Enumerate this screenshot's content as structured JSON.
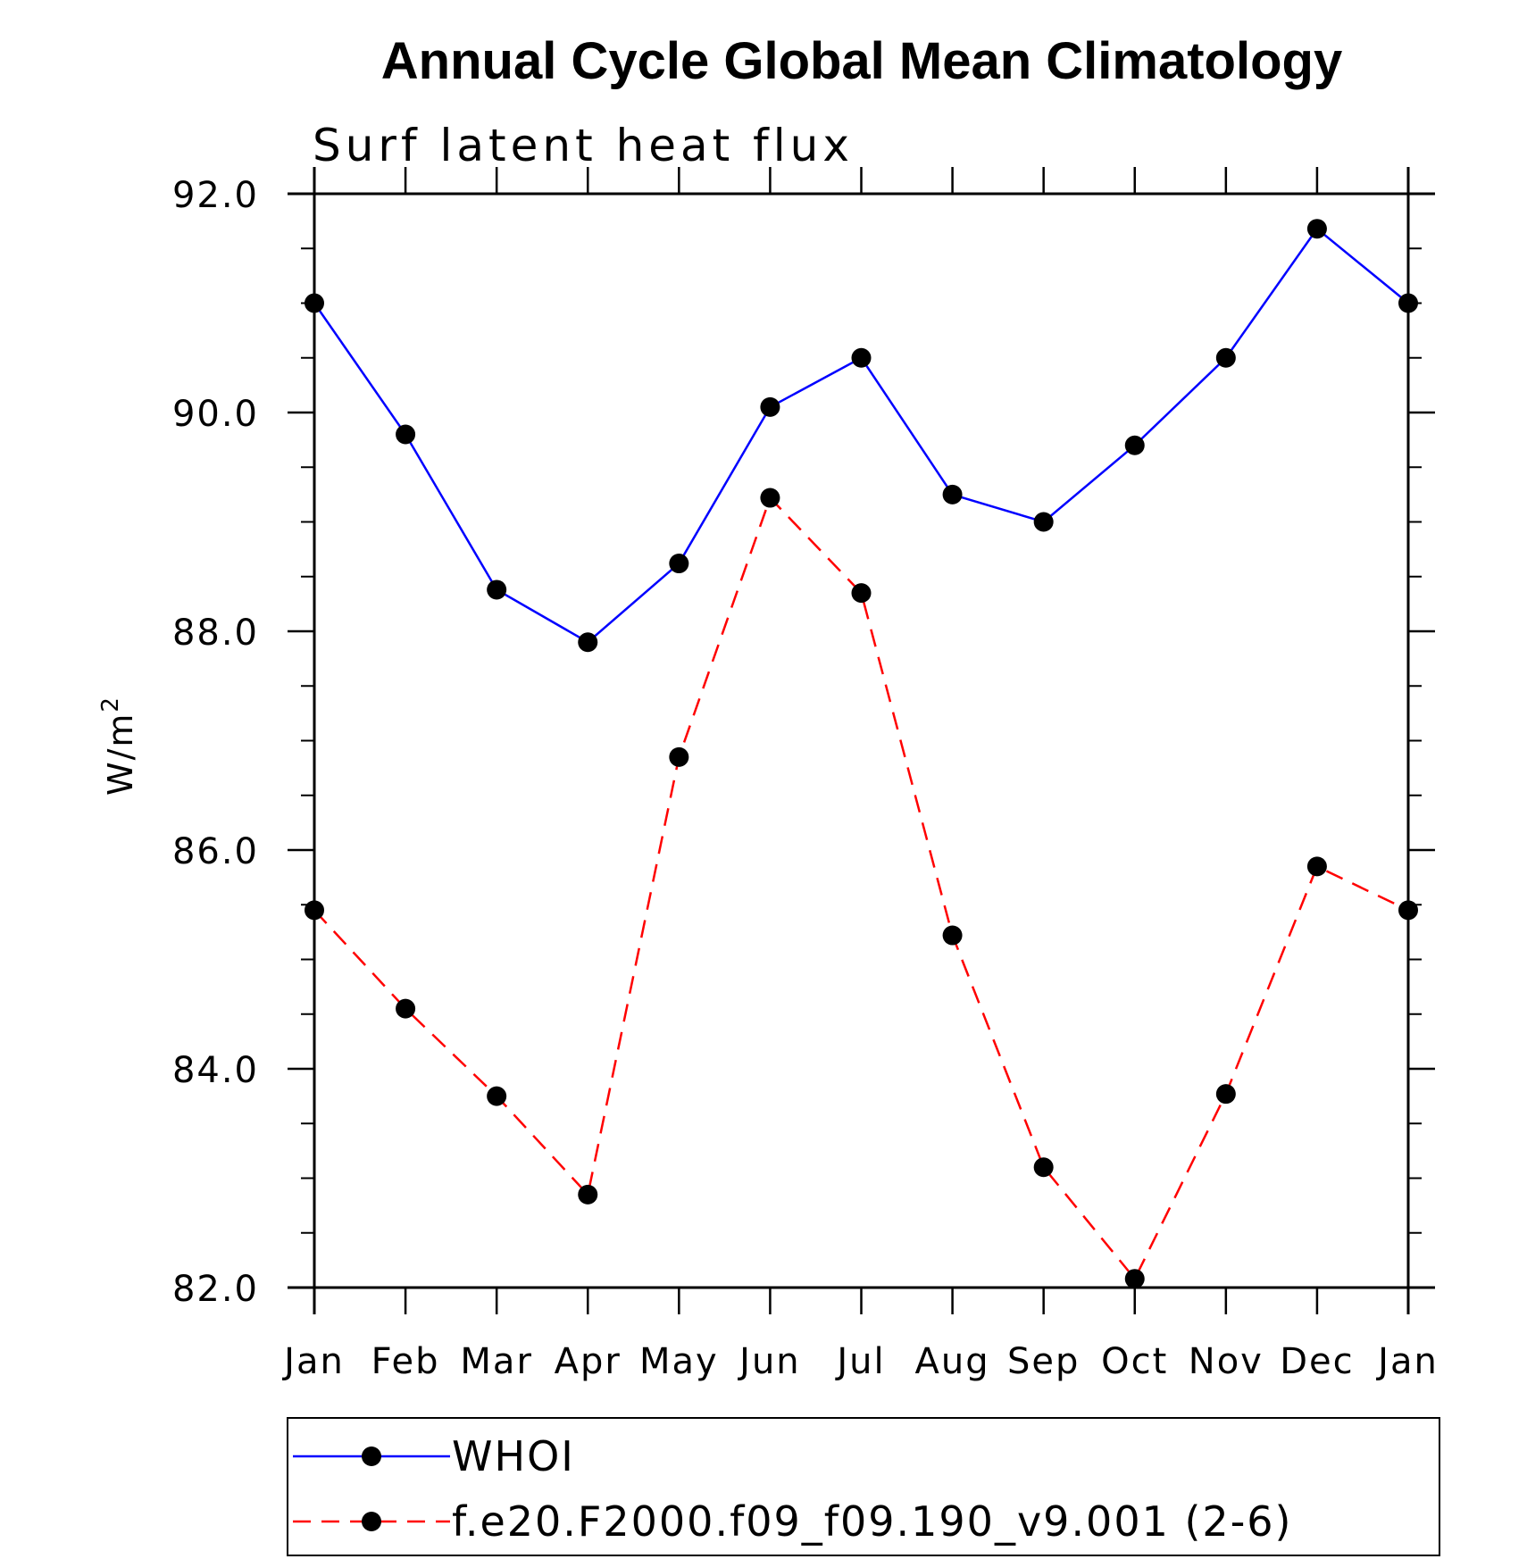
{
  "chart_data": {
    "type": "line",
    "title": "Annual Cycle Global Mean Climatology",
    "subtitle": "Surf latent heat flux",
    "xlabel": "",
    "ylabel": "W/m",
    "ylabel_superscript": "2",
    "categories": [
      "Jan",
      "Feb",
      "Mar",
      "Apr",
      "May",
      "Jun",
      "Jul",
      "Aug",
      "Sep",
      "Oct",
      "Nov",
      "Dec",
      "Jan"
    ],
    "ylim": [
      82.0,
      92.0
    ],
    "yticks": [
      "82.0",
      "84.0",
      "86.0",
      "88.0",
      "90.0",
      "92.0"
    ],
    "grid": false,
    "legend_position": "bottom",
    "series": [
      {
        "name": "WHOI",
        "color": "#0000ff",
        "linestyle": "solid",
        "marker": "filled-circle",
        "values": [
          91.0,
          89.8,
          88.38,
          87.9,
          88.62,
          90.05,
          90.5,
          89.25,
          89.0,
          89.7,
          90.5,
          91.68,
          91.0
        ]
      },
      {
        "name": "f.e20.F2000.f09_f09.190_v9.001 (2-6)",
        "color": "#ff0000",
        "linestyle": "dashed",
        "marker": "filled-circle",
        "values": [
          85.45,
          84.55,
          83.75,
          82.85,
          86.85,
          89.22,
          88.35,
          85.22,
          83.1,
          82.08,
          83.77,
          85.85,
          85.45
        ]
      }
    ]
  }
}
